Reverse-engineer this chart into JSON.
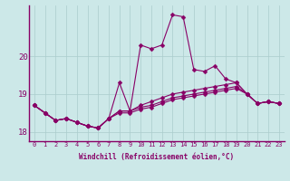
{
  "xlabel": "Windchill (Refroidissement éolien,°C)",
  "ylabel": "",
  "xlim": [
    -0.5,
    23.5
  ],
  "ylim": [
    17.75,
    21.35
  ],
  "yticks": [
    18,
    19,
    20
  ],
  "ytick_labels": [
    "18",
    "19",
    "20"
  ],
  "xticks": [
    0,
    1,
    2,
    3,
    4,
    5,
    6,
    7,
    8,
    9,
    10,
    11,
    12,
    13,
    14,
    15,
    16,
    17,
    18,
    19,
    20,
    21,
    22,
    23
  ],
  "background_color": "#cce8e8",
  "line_color": "#880066",
  "grid_color": "#aacccc",
  "series": [
    [
      18.7,
      18.5,
      18.3,
      18.35,
      18.25,
      18.15,
      18.1,
      18.35,
      19.3,
      18.55,
      20.3,
      20.2,
      20.3,
      21.1,
      21.05,
      19.65,
      19.6,
      19.75,
      19.4,
      19.3,
      19.0,
      18.75,
      18.8,
      18.75
    ],
    [
      18.7,
      18.5,
      18.3,
      18.35,
      18.25,
      18.15,
      18.1,
      18.35,
      18.55,
      18.55,
      18.7,
      18.8,
      18.9,
      19.0,
      19.05,
      19.1,
      19.15,
      19.2,
      19.25,
      19.3,
      19.0,
      18.75,
      18.8,
      18.75
    ],
    [
      18.7,
      18.5,
      18.3,
      18.35,
      18.25,
      18.15,
      18.1,
      18.35,
      18.55,
      18.55,
      18.65,
      18.7,
      18.8,
      18.9,
      18.95,
      19.0,
      19.05,
      19.1,
      19.15,
      19.2,
      19.0,
      18.75,
      18.8,
      18.75
    ],
    [
      18.7,
      18.5,
      18.3,
      18.35,
      18.25,
      18.15,
      18.1,
      18.35,
      18.5,
      18.5,
      18.6,
      18.65,
      18.75,
      18.85,
      18.9,
      18.95,
      19.0,
      19.05,
      19.1,
      19.15,
      19.0,
      18.75,
      18.8,
      18.75
    ]
  ],
  "marker_size": 2.5,
  "linewidth": 0.8,
  "xlabel_fontsize": 5.5,
  "ytick_fontsize": 6.5,
  "xtick_fontsize": 5.0
}
